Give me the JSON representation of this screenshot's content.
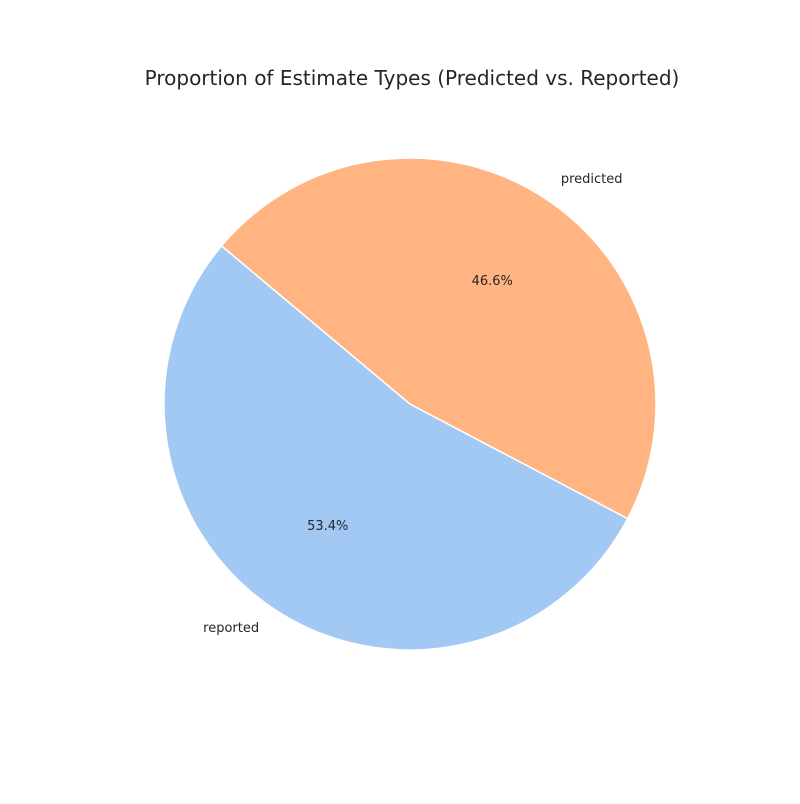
{
  "chart_data": {
    "type": "pie",
    "title": "Proportion of Estimate Types (Predicted vs. Reported)",
    "slices": [
      {
        "label": "reported",
        "value": 53.4,
        "pct_label": "53.4%",
        "color": "#a1c9f4"
      },
      {
        "label": "predicted",
        "value": 46.6,
        "pct_label": "46.6%",
        "color": "#ffb482"
      }
    ],
    "start_angle_deg": 140,
    "direction": "counterclockwise",
    "legend": "none"
  }
}
